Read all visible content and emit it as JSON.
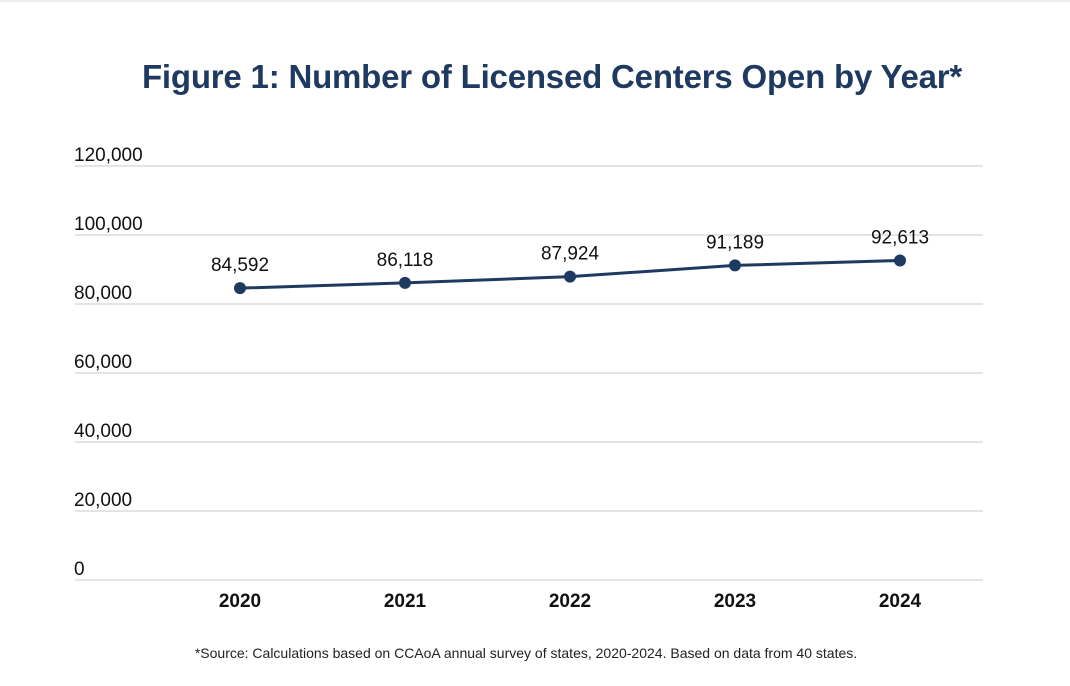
{
  "chart_data": {
    "type": "line",
    "title": "Figure 1: Number of Licensed Centers Open by Year*",
    "xlabel": "",
    "ylabel": "",
    "categories": [
      "2020",
      "2021",
      "2022",
      "2023",
      "2024"
    ],
    "series": [
      {
        "values": [
          84592,
          86118,
          87924,
          91189,
          92613
        ]
      }
    ],
    "data_labels": [
      "84,592",
      "86,118",
      "87,924",
      "91,189",
      "92,613"
    ],
    "ylim": [
      0,
      120000
    ],
    "yticks": [
      0,
      20000,
      40000,
      60000,
      80000,
      100000,
      120000
    ],
    "ytick_labels": [
      "0",
      "20,000",
      "40,000",
      "60,000",
      "80,000",
      "100,000",
      "120,000"
    ],
    "grid": true,
    "legend": "none",
    "colors": {
      "line": "#1f3a60",
      "grid": "#d4d4d4",
      "text": "#111111"
    }
  },
  "footnote": "*Source: Calculations based on CCAoA annual survey of states, 2020-2024. Based on data from 40 states."
}
